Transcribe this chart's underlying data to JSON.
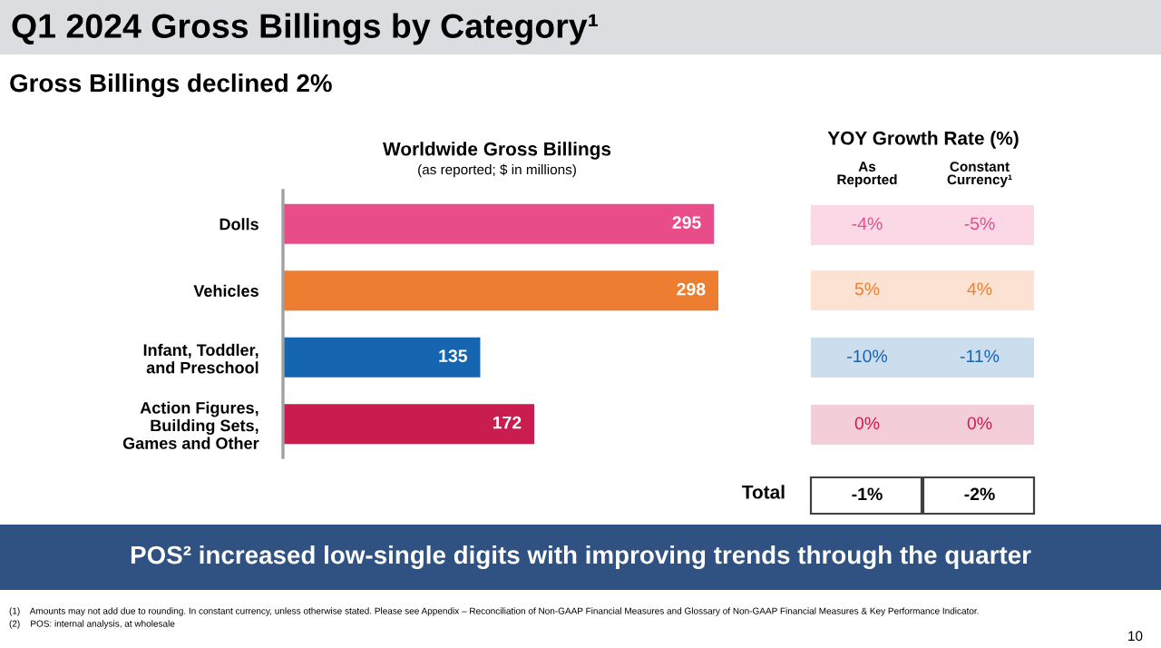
{
  "chart_data": {
    "type": "bar",
    "orientation": "horizontal",
    "title": "Q1 2024 Gross Billings by Category¹",
    "subtitle": "Gross Billings declined 2%",
    "categories": [
      "Dolls",
      "Vehicles",
      "Infant, Toddler,\nand Preschool",
      "Action Figures,\nBuilding Sets,\nGames and Other"
    ],
    "values": [
      295,
      298,
      135,
      172
    ],
    "colors": [
      "#e84d8a",
      "#ed7d31",
      "#1565b0",
      "#c81d4e"
    ],
    "data_labels": true,
    "grid": false,
    "legend": false,
    "tick_labels": "y",
    "annotations": [
      "Worldwide Gross Billings",
      "(as reported; $ in millions)",
      "YOY Growth Rate (%)",
      "As\nReported",
      "Constant\nCurrency¹",
      "-4%",
      "-5%",
      "5%",
      "4%",
      "-10%",
      "-11%",
      "0%",
      "0%",
      "Total",
      "-1%",
      "-2%",
      "POS² increased low-single digits with improving trends through the quarter",
      "(1)    Amounts may not add due to rounding. In constant currency, unless otherwise stated. Please see Appendix – Reconciliation of Non-GAAP Financial Measures and Glossary of Non-GAAP Financial Measures & Key Performance Indicator.",
      "(2)    POS: internal analysis, at wholesale",
      "10"
    ]
  }
}
